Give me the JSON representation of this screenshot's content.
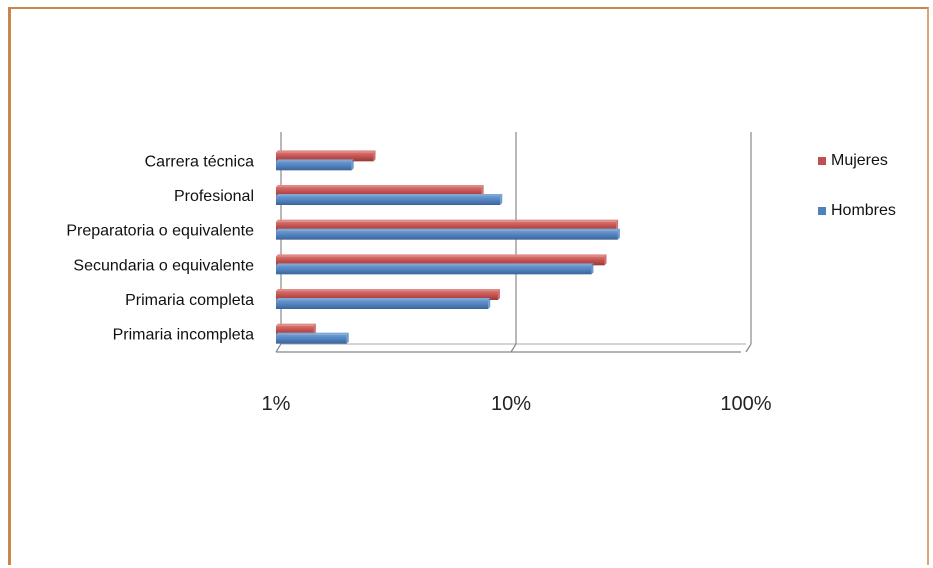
{
  "chart_data": {
    "type": "bar",
    "orientation": "horizontal",
    "x_scale": "log",
    "xlim": [
      1,
      100
    ],
    "x_ticks": [
      "1%",
      "10%",
      "100%"
    ],
    "categories": [
      "Carrera técnica",
      "Profesional",
      "Preparatoria o equivalente",
      "Secundaria o equivalente",
      "Primaria completa",
      "Primaria incompleta"
    ],
    "series": [
      {
        "name": "Mujeres",
        "color": "#c0504d",
        "values": [
          2.6,
          7.5,
          28.0,
          25.0,
          8.8,
          1.45
        ]
      },
      {
        "name": "Hombres",
        "color": "#4f81bd",
        "values": [
          2.1,
          9.0,
          28.5,
          22.0,
          8.0,
          2.0
        ]
      }
    ],
    "legend_position": "right",
    "grid": true
  }
}
